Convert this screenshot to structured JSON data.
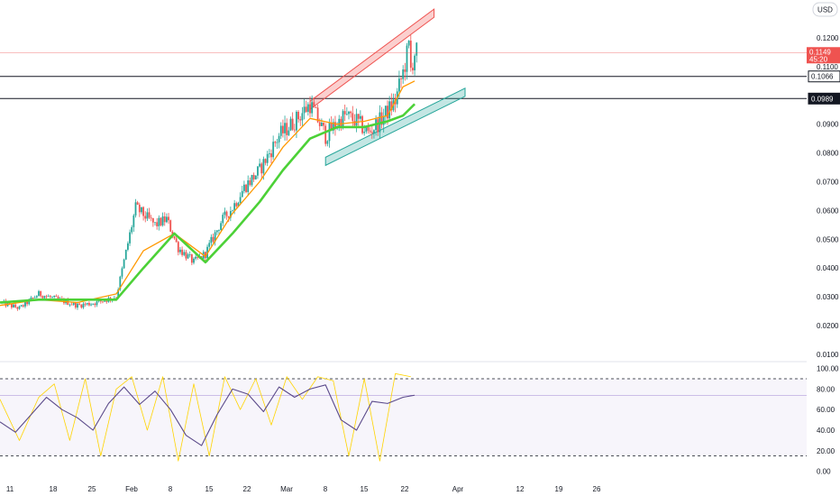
{
  "currency_label": "USD",
  "colors": {
    "up": "#26a69a",
    "down": "#ef5350",
    "fast_ma": "#ff9800",
    "slow_ma": "#4cd137",
    "stoch_k": "#ffd400",
    "stoch_d": "#5b4a8a",
    "price_line": "#ef5350",
    "wedge_upper": "#ef5350",
    "wedge_lower": "#26a69a"
  },
  "chart_data": [
    {
      "type": "line",
      "panel": "price",
      "title": "",
      "y_ticks": [
        "0.1200",
        "0.1100",
        "0.0900",
        "0.0800",
        "0.0700",
        "0.0600",
        "0.0500",
        "0.0400",
        "0.0300",
        "0.0200",
        "0.0100"
      ],
      "ylim": [
        0.005,
        0.135
      ],
      "x_ticks": [
        "11",
        "18",
        "25",
        "Feb",
        "8",
        "15",
        "22",
        "Mar",
        "8",
        "15",
        "22",
        "Apr",
        "12",
        "19",
        "26"
      ],
      "approx_close_series": {
        "x": [
          0,
          5,
          10,
          15,
          20,
          25,
          30,
          35,
          40,
          43,
          46,
          50,
          53,
          57,
          60,
          63,
          67,
          72,
          76,
          80,
          84,
          86,
          89,
          92,
          95,
          98,
          102,
          104,
          105.5,
          106,
          107
        ],
        "values": [
          0.028,
          0.026,
          0.031,
          0.029,
          0.027,
          0.028,
          0.03,
          0.061,
          0.055,
          0.057,
          0.047,
          0.042,
          0.045,
          0.056,
          0.061,
          0.068,
          0.074,
          0.086,
          0.091,
          0.097,
          0.086,
          0.089,
          0.093,
          0.091,
          0.087,
          0.091,
          0.098,
          0.108,
          0.117,
          0.109,
          0.1149
        ]
      },
      "moving_averages": [
        {
          "x": [
            0,
            10,
            20,
            30,
            37,
            45,
            53,
            60,
            67,
            73,
            80,
            87,
            94,
            100,
            104,
            107
          ],
          "values": [
            0.027,
            0.029,
            0.028,
            0.031,
            0.046,
            0.052,
            0.044,
            0.059,
            0.07,
            0.082,
            0.092,
            0.09,
            0.091,
            0.093,
            0.103,
            0.105
          ]
        },
        {
          "x": [
            0,
            10,
            20,
            30,
            37,
            45,
            53,
            60,
            67,
            73,
            80,
            87,
            94,
            100,
            104,
            107
          ],
          "values": [
            0.028,
            0.029,
            0.029,
            0.029,
            0.04,
            0.052,
            0.042,
            0.052,
            0.063,
            0.074,
            0.085,
            0.089,
            0.089,
            0.091,
            0.093,
            0.097
          ]
        }
      ],
      "horizontal_levels": [
        "0.1066",
        "0.0989"
      ],
      "current_price": {
        "value": "0.1149",
        "countdown": "45:20"
      },
      "annotations": [
        {
          "kind": "rising-channel-upper",
          "x": [
            80,
            112
          ],
          "y": [
            0.098,
            0.13
          ]
        },
        {
          "kind": "rising-channel-lower",
          "x": [
            84,
            120
          ],
          "y": [
            0.0785,
            0.1025
          ]
        }
      ]
    },
    {
      "type": "line",
      "panel": "oscillator",
      "title": "",
      "y_ticks": [
        "100.00",
        "80.00",
        "60.00",
        "40.00",
        "20.00",
        "0.00"
      ],
      "ylim": [
        -8,
        110
      ],
      "levels": [
        90,
        15
      ],
      "band": [
        15,
        90
      ],
      "reference_value": 74,
      "series": [
        {
          "x": [
            0,
            5,
            10,
            14,
            18,
            22,
            26,
            30,
            34,
            38,
            42,
            46,
            50,
            54,
            58,
            62,
            66,
            70,
            74,
            78,
            82,
            86,
            90,
            94,
            98,
            102,
            106
          ],
          "values": [
            70,
            30,
            72,
            85,
            30,
            90,
            15,
            80,
            92,
            40,
            92,
            10,
            85,
            15,
            92,
            60,
            90,
            45,
            92,
            70,
            92,
            88,
            15,
            90,
            10,
            95,
            92
          ]
        },
        {
          "x": [
            0,
            4,
            8,
            12,
            16,
            20,
            24,
            28,
            32,
            36,
            40,
            44,
            48,
            52,
            56,
            60,
            64,
            68,
            72,
            76,
            80,
            84,
            88,
            92,
            96,
            100,
            104,
            107
          ],
          "values": [
            48,
            38,
            55,
            72,
            60,
            52,
            40,
            66,
            82,
            65,
            78,
            60,
            35,
            25,
            55,
            80,
            75,
            58,
            82,
            72,
            80,
            84,
            50,
            40,
            68,
            66,
            72,
            74
          ]
        }
      ]
    }
  ]
}
